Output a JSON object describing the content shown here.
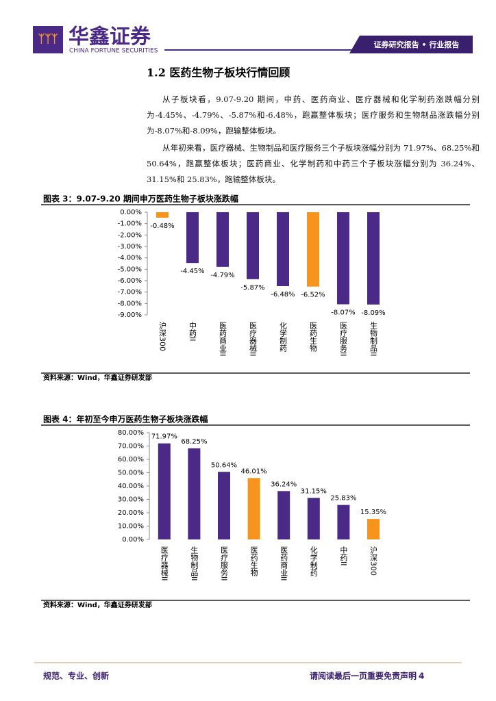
{
  "header": {
    "company": "华鑫证券",
    "company_en": "CHINA FORTUNE SECURITIES",
    "report_type": "证券研究报告 • 行业报告"
  },
  "section_title": "1.2 医药生物子板块行情回顾",
  "paragraphs": [
    "从子板块看，9.07-9.20 期间，中药、医药商业、医疗器械和化学制药涨跌幅分别为-4.45%、-4.79%、-5.87%和-6.48%，跑赢整体板块；医疗服务和生物制品涨跌幅分别为-8.07%和-8.09%，跑输整体板块。",
    "从年初来看，医疗器械、生物制品和医疗服务三个子板块涨幅分别为 71.97%、68.25%和 50.64%，跑赢整体板块；医药商业、化学制药和中药三个子板块涨幅分别为 36.24%、31.15%和 25.83%，跑输整体板块。"
  ],
  "chart_data": [
    {
      "type": "bar",
      "title": "图表 3：9.07-9.20 期间申万医药生物子板块涨跌幅",
      "categories": [
        "沪深300",
        "中药II",
        "医药商业II",
        "医疗器械II",
        "化学制药",
        "医药生物",
        "医疗服务II",
        "生物制品II"
      ],
      "values": [
        -0.48,
        -4.45,
        -4.79,
        -5.87,
        -6.48,
        -6.52,
        -8.07,
        -8.09
      ],
      "value_labels": [
        "-0.48%",
        "-4.45%",
        "-4.79%",
        "-5.87%",
        "-6.48%",
        "-6.52%",
        "-8.07%",
        "-8.09%"
      ],
      "colors": [
        "#f7941d",
        "#4b2a87",
        "#4b2a87",
        "#4b2a87",
        "#4b2a87",
        "#f7941d",
        "#4b2a87",
        "#4b2a87"
      ],
      "ylim": [
        -9,
        0
      ],
      "yticks": [
        {
          "value": 0,
          "label": "0.00%"
        },
        {
          "value": -1,
          "label": "-1.00%"
        },
        {
          "value": -2,
          "label": "-2.00%"
        },
        {
          "value": -3,
          "label": "-3.00%"
        },
        {
          "value": -4,
          "label": "-4.00%"
        },
        {
          "value": -5,
          "label": "-5.00%"
        },
        {
          "value": -6,
          "label": "-6.00%"
        },
        {
          "value": -7,
          "label": "-7.00%"
        },
        {
          "value": -8,
          "label": "-8.00%"
        },
        {
          "value": -9,
          "label": "-9.00%"
        }
      ],
      "source": "资料来源：Wind，华鑫证券研发部"
    },
    {
      "type": "bar",
      "title": "图表 4：年初至今申万医药生物子板块涨跌幅",
      "categories": [
        "医疗器械II",
        "生物制品II",
        "医疗服务II",
        "医药生物",
        "医药商业II",
        "化学制药",
        "中药II",
        "沪深300"
      ],
      "values": [
        71.97,
        68.25,
        50.64,
        46.01,
        36.24,
        31.15,
        25.83,
        15.35
      ],
      "value_labels": [
        "71.97%",
        "68.25%",
        "50.64%",
        "46.01%",
        "36.24%",
        "31.15%",
        "25.83%",
        "15.35%"
      ],
      "colors": [
        "#4b2a87",
        "#4b2a87",
        "#4b2a87",
        "#f7941d",
        "#4b2a87",
        "#4b2a87",
        "#4b2a87",
        "#f7941d"
      ],
      "ylim": [
        0,
        80
      ],
      "yticks": [
        {
          "value": 80,
          "label": "80.00%"
        },
        {
          "value": 70,
          "label": "70.00%"
        },
        {
          "value": 60,
          "label": "60.00%"
        },
        {
          "value": 50,
          "label": "50.00%"
        },
        {
          "value": 40,
          "label": "40.00%"
        },
        {
          "value": 30,
          "label": "30.00%"
        },
        {
          "value": 20,
          "label": "20.00%"
        },
        {
          "value": 10,
          "label": "10.00%"
        },
        {
          "value": 0,
          "label": "0.00%"
        }
      ],
      "source": "资料来源：Wind，华鑫证券研发部"
    }
  ],
  "footer": {
    "left": "规范、专业、创新",
    "right": "请阅读最后一页重要免责声明",
    "page": "4"
  }
}
